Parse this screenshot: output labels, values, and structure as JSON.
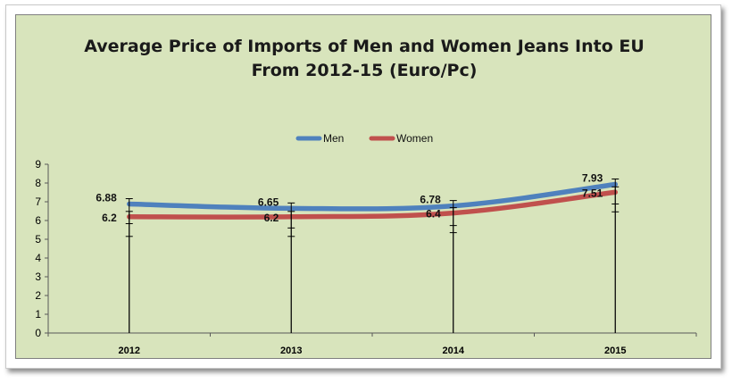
{
  "chart_data": {
    "type": "line",
    "title_line1": "Average Price of Imports of Men and Women Jeans Into EU",
    "title_line2": "From 2012-15 (Euro/Pc)",
    "categories": [
      "2012",
      "2013",
      "2014",
      "2015"
    ],
    "series": [
      {
        "name": "Men",
        "values": [
          6.88,
          6.65,
          6.78,
          7.93
        ],
        "labels": [
          "6.88",
          "6.65",
          "6.78",
          "7.93"
        ],
        "color": "#4f81bd"
      },
      {
        "name": "Women",
        "values": [
          6.2,
          6.2,
          6.4,
          7.51
        ],
        "labels": [
          "6.2",
          "6.2",
          "6.4",
          "7.51"
        ],
        "color": "#c0504d"
      }
    ],
    "ylim": [
      0,
      9
    ],
    "yticks": [
      "0",
      "1",
      "2",
      "3",
      "4",
      "5",
      "6",
      "7",
      "8",
      "9"
    ],
    "error_bars": true,
    "grid": false,
    "smoothed": true,
    "legend_position": "top"
  }
}
